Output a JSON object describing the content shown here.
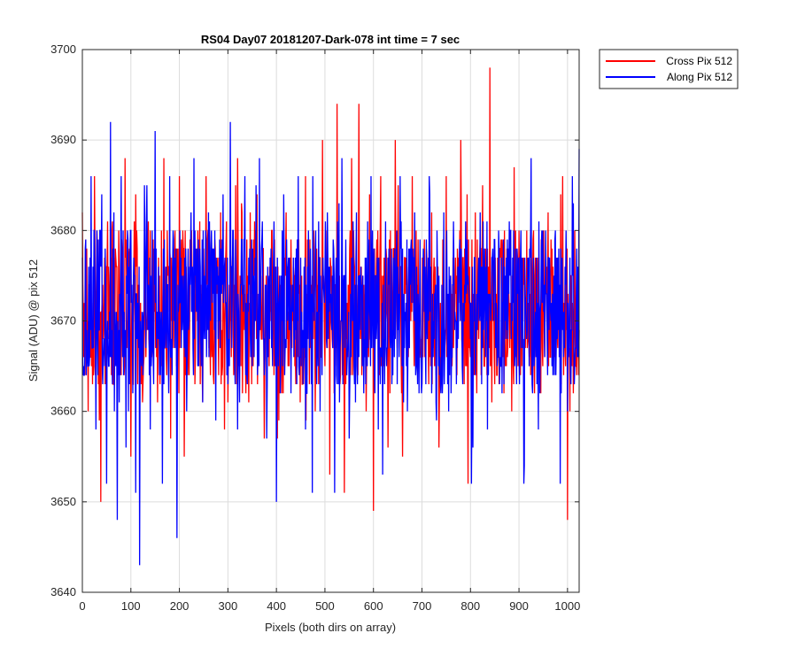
{
  "chart_data": {
    "type": "line",
    "title": "RS04 Day07 20181207-Dark-078 int time = 7 sec",
    "xlabel": "Pixels (both dirs on array)",
    "ylabel": "Signal (ADU) @ pix 512",
    "xlim": [
      0,
      1024
    ],
    "ylim": [
      3640,
      3700
    ],
    "x_ticks": [
      0,
      100,
      200,
      300,
      400,
      500,
      600,
      700,
      800,
      900,
      1000
    ],
    "y_ticks": [
      3640,
      3650,
      3660,
      3670,
      3680,
      3690,
      3700
    ],
    "grid": true,
    "legend_position": "outside-top-right",
    "series": [
      {
        "name": "Cross Pix 512",
        "color": "#ff0000",
        "points_note": "noisy trace, approx. 1024 samples; representative values",
        "x": [
          0,
          12,
          25,
          38,
          45,
          52,
          60,
          75,
          88,
          100,
          110,
          125,
          140,
          155,
          168,
          182,
          200,
          210,
          225,
          240,
          255,
          270,
          285,
          300,
          320,
          340,
          360,
          375,
          390,
          405,
          420,
          440,
          460,
          480,
          495,
          510,
          525,
          540,
          555,
          570,
          585,
          592,
          600,
          615,
          630,
          645,
          660,
          680,
          700,
          720,
          735,
          750,
          765,
          780,
          795,
          810,
          825,
          840,
          855,
          870,
          885,
          900,
          915,
          930,
          945,
          960,
          975,
          990,
          1000,
          1005,
          1015,
          1024
        ],
        "y": [
          3682,
          3660,
          3686,
          3650,
          3672,
          3681,
          3664,
          3680,
          3688,
          3655,
          3684,
          3663,
          3680,
          3661,
          3688,
          3657,
          3686,
          3655,
          3680,
          3669,
          3686,
          3664,
          3682,
          3661,
          3688,
          3666,
          3684,
          3657,
          3680,
          3659,
          3682,
          3663,
          3686,
          3660,
          3690,
          3653,
          3694,
          3651,
          3688,
          3694,
          3660,
          3684,
          3649,
          3686,
          3656,
          3690,
          3655,
          3686,
          3663,
          3682,
          3656,
          3686,
          3667,
          3690,
          3652,
          3682,
          3685,
          3698,
          3664,
          3680,
          3660,
          3680,
          3668,
          3680,
          3662,
          3682,
          3666,
          3686,
          3648,
          3660,
          3680,
          3669
        ]
      },
      {
        "name": "Along Pix 512",
        "color": "#0000ff",
        "points_note": "noisy trace, approx. 1024 samples; representative values",
        "x": [
          0,
          8,
          18,
          28,
          40,
          50,
          58,
          66,
          72,
          80,
          90,
          100,
          110,
          118,
          128,
          140,
          150,
          165,
          180,
          195,
          200,
          215,
          230,
          245,
          260,
          275,
          290,
          305,
          320,
          335,
          350,
          365,
          380,
          395,
          400,
          415,
          430,
          445,
          460,
          475,
          490,
          505,
          520,
          535,
          550,
          565,
          580,
          595,
          610,
          625,
          640,
          655,
          670,
          685,
          700,
          715,
          730,
          745,
          760,
          775,
          790,
          805,
          820,
          835,
          850,
          865,
          880,
          895,
          910,
          925,
          940,
          955,
          970,
          985,
          1000,
          1010,
          1024
        ],
        "y": [
          3677,
          3664,
          3686,
          3658,
          3684,
          3652,
          3692,
          3660,
          3648,
          3686,
          3656,
          3680,
          3651,
          3643,
          3685,
          3658,
          3691,
          3652,
          3686,
          3646,
          3672,
          3660,
          3688,
          3665,
          3682,
          3659,
          3684,
          3692,
          3658,
          3686,
          3665,
          3688,
          3657,
          3681,
          3650,
          3684,
          3662,
          3686,
          3658,
          3686,
          3660,
          3682,
          3651,
          3688,
          3657,
          3682,
          3662,
          3686,
          3658,
          3681,
          3664,
          3686,
          3660,
          3682,
          3663,
          3686,
          3659,
          3682,
          3662,
          3668,
          3681,
          3656,
          3682,
          3658,
          3679,
          3662,
          3681,
          3663,
          3652,
          3688,
          3658,
          3680,
          3664,
          3652,
          3660,
          3686,
          3689
        ]
      }
    ]
  }
}
